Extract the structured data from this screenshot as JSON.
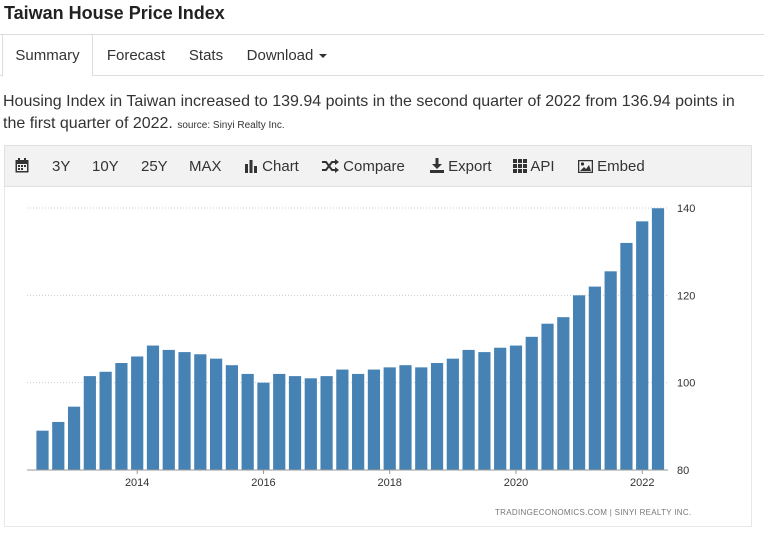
{
  "header": {
    "title": "Taiwan House Price Index"
  },
  "tabs": [
    {
      "label": "Summary",
      "active": true
    },
    {
      "label": "Forecast"
    },
    {
      "label": "Stats"
    },
    {
      "label": "Download"
    }
  ],
  "summary": {
    "text": "Housing Index in Taiwan increased to 139.94 points in the second quarter of 2022 from 136.94 points in the first quarter of 2022.",
    "source": "source: Sinyi Realty Inc."
  },
  "toolbar": {
    "calendar_icon": "calendar-icon",
    "ranges": [
      "3Y",
      "10Y",
      "25Y",
      "MAX"
    ],
    "chart_label": "Chart",
    "compare_label": "Compare",
    "export_label": "Export",
    "api_label": "API",
    "embed_label": "Embed"
  },
  "colors": {
    "bar": "#4682b4",
    "grid": "#cccccc",
    "text": "#333333"
  },
  "watermark": "TRADINGECONOMICS.COM | SINYI REALTY INC.",
  "chart_data": {
    "type": "bar",
    "title": "",
    "xlabel": "",
    "ylabel": "",
    "ylim": [
      80,
      140
    ],
    "yticks": [
      80,
      100,
      120,
      140
    ],
    "y_axis_side": "right",
    "grid": "horizontal dotted",
    "x_tick_labels": [
      "2014",
      "2016",
      "2018",
      "2020",
      "2022"
    ],
    "series": [
      {
        "values": [
          89,
          91,
          94.5,
          101.5,
          102.5,
          104.5,
          106,
          108.5,
          107.5,
          107,
          106.5,
          105.5,
          104,
          102,
          100,
          102,
          101.5,
          101,
          101.5,
          103,
          102,
          103,
          103.5,
          104,
          103.5,
          104.5,
          105.5,
          107.5,
          107,
          108,
          108.5,
          110.5,
          113.5,
          115,
          120,
          122,
          125.5,
          132,
          136.94,
          139.94
        ]
      }
    ]
  }
}
